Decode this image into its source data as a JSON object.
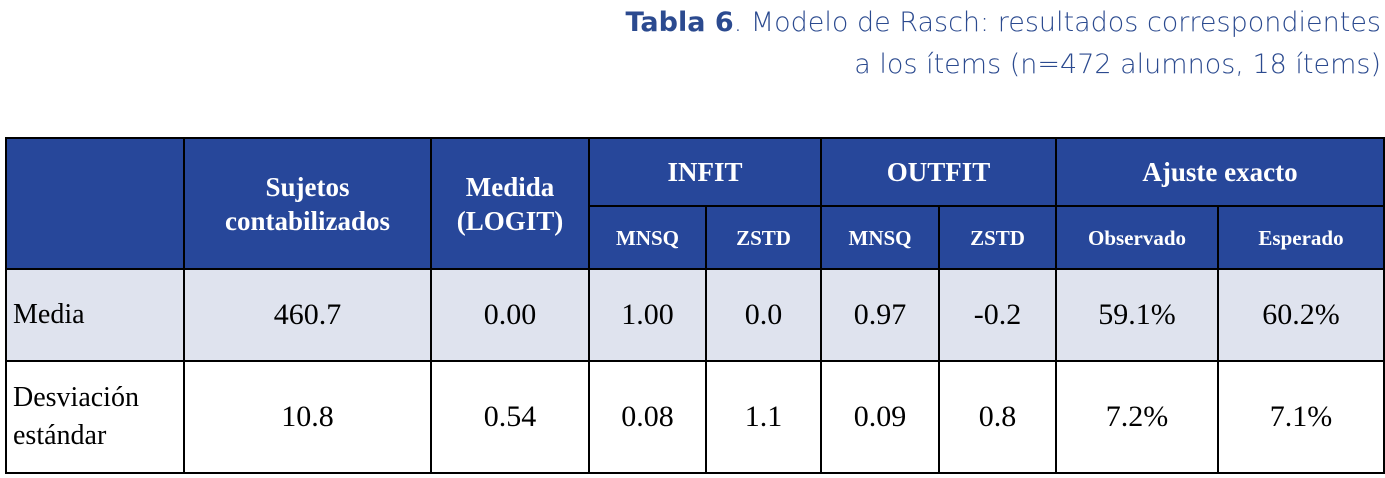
{
  "title": {
    "label": "Tabla 6",
    "text": ". Modelo de Rasch: resultados correspondientes",
    "line2": "a los ítems (n=472 alumnos, 18 ítems)"
  },
  "table": {
    "columns": [
      {
        "label": "Sujetos contabilizados"
      },
      {
        "label": "Medida (LOGIT)"
      },
      {
        "label": "INFIT",
        "sub": [
          "MNSQ",
          "ZSTD"
        ]
      },
      {
        "label": "OUTFIT",
        "sub": [
          "MNSQ",
          "ZSTD"
        ]
      },
      {
        "label": "Ajuste exacto",
        "sub": [
          "Observado",
          "Esperado"
        ]
      }
    ],
    "rows": [
      {
        "label": "Media",
        "cells": [
          "460.7",
          "0.00",
          "1.00",
          "0.0",
          "0.97",
          "-0.2",
          "59.1%",
          "60.2%"
        ]
      },
      {
        "label": "Desviación estándar",
        "cells": [
          "10.8",
          "0.54",
          "0.08",
          "1.1",
          "0.09",
          "0.8",
          "7.2%",
          "7.1%"
        ]
      }
    ]
  }
}
